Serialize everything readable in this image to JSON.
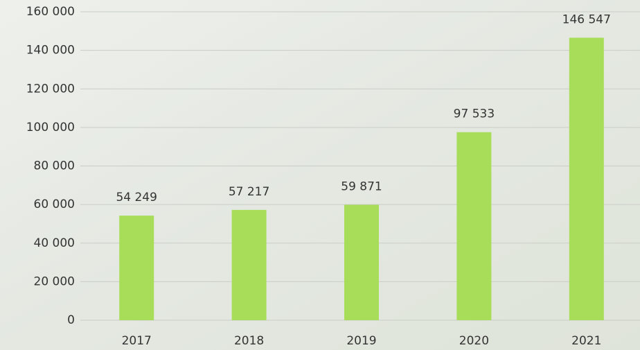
{
  "chart_data": {
    "type": "bar",
    "categories": [
      "2017",
      "2018",
      "2019",
      "2020",
      "2021"
    ],
    "values": [
      54249,
      57217,
      59871,
      97533,
      146547
    ],
    "value_labels": [
      "54 249",
      "57 217",
      "59 871",
      "97 533",
      "146 547"
    ],
    "color": "#a8dd5a",
    "ylim": [
      0,
      160000
    ],
    "yticks": [
      {
        "value": 0,
        "label": "0"
      },
      {
        "value": 20000,
        "label": "20 000"
      },
      {
        "value": 40000,
        "label": "40 000"
      },
      {
        "value": 60000,
        "label": "60 000"
      },
      {
        "value": 80000,
        "label": "80 000"
      },
      {
        "value": 100000,
        "label": "100 000"
      },
      {
        "value": 120000,
        "label": "120 000"
      },
      {
        "value": 140000,
        "label": "140 000"
      },
      {
        "value": 160000,
        "label": "160 000"
      }
    ],
    "grid": true
  }
}
